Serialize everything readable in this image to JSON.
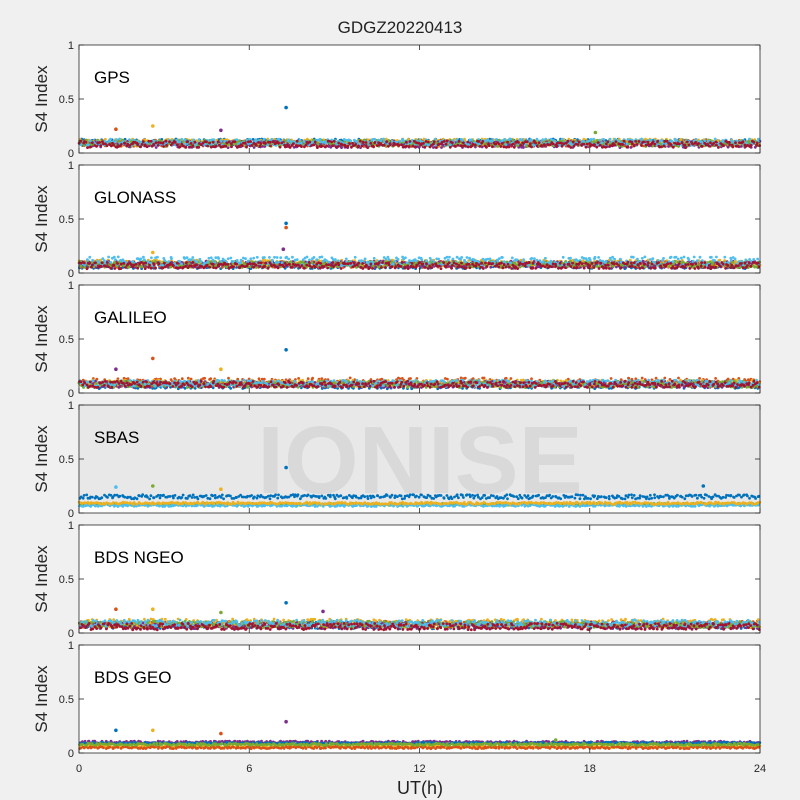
{
  "figure": {
    "title": "GDGZ20220413",
    "xlabel": "UT(h)",
    "watermark": "IONISE"
  },
  "chart_data": [
    {
      "type": "scatter",
      "title": "GPS",
      "ylabel": "S4 Index",
      "xlim": [
        0,
        24
      ],
      "ylim": [
        0,
        1
      ],
      "xticks": [
        0,
        6,
        12,
        18,
        24
      ],
      "yticks": [
        0,
        0.5,
        1
      ],
      "series": [
        {
          "color": "#0072BD",
          "baseline": 0.1,
          "spread": 0.03
        },
        {
          "color": "#D95319",
          "baseline": 0.09,
          "spread": 0.03
        },
        {
          "color": "#EDB120",
          "baseline": 0.1,
          "spread": 0.03
        },
        {
          "color": "#7E2F8E",
          "baseline": 0.08,
          "spread": 0.03
        },
        {
          "color": "#77AC30",
          "baseline": 0.09,
          "spread": 0.03
        },
        {
          "color": "#4DBEEE",
          "baseline": 0.1,
          "spread": 0.03
        },
        {
          "color": "#A2142F",
          "baseline": 0.08,
          "spread": 0.03
        }
      ],
      "outliers": [
        {
          "x": 7.3,
          "y": 0.42
        },
        {
          "x": 1.3,
          "y": 0.22
        },
        {
          "x": 2.6,
          "y": 0.25
        },
        {
          "x": 5.0,
          "y": 0.21
        },
        {
          "x": 18.2,
          "y": 0.19
        }
      ]
    },
    {
      "type": "scatter",
      "title": "GLONASS",
      "ylabel": "S4 Index",
      "xlim": [
        0,
        24
      ],
      "ylim": [
        0,
        1
      ],
      "xticks": [
        0,
        6,
        12,
        18,
        24
      ],
      "yticks": [
        0,
        0.5,
        1
      ],
      "series": [
        {
          "color": "#0072BD",
          "baseline": 0.07,
          "spread": 0.03
        },
        {
          "color": "#D95319",
          "baseline": 0.08,
          "spread": 0.03
        },
        {
          "color": "#EDB120",
          "baseline": 0.09,
          "spread": 0.03
        },
        {
          "color": "#7E2F8E",
          "baseline": 0.08,
          "spread": 0.03
        },
        {
          "color": "#77AC30",
          "baseline": 0.08,
          "spread": 0.03
        },
        {
          "color": "#4DBEEE",
          "baseline": 0.11,
          "spread": 0.04
        },
        {
          "color": "#A2142F",
          "baseline": 0.07,
          "spread": 0.03
        }
      ],
      "outliers": [
        {
          "x": 7.3,
          "y": 0.46
        },
        {
          "x": 7.3,
          "y": 0.42
        },
        {
          "x": 2.6,
          "y": 0.19
        },
        {
          "x": 7.2,
          "y": 0.22
        }
      ]
    },
    {
      "type": "scatter",
      "title": "GALILEO",
      "ylabel": "S4 Index",
      "xlim": [
        0,
        24
      ],
      "ylim": [
        0,
        1
      ],
      "xticks": [
        0,
        6,
        12,
        18,
        24
      ],
      "yticks": [
        0,
        0.5,
        1
      ],
      "series": [
        {
          "color": "#0072BD",
          "baseline": 0.07,
          "spread": 0.03
        },
        {
          "color": "#D95319",
          "baseline": 0.1,
          "spread": 0.04
        },
        {
          "color": "#EDB120",
          "baseline": 0.09,
          "spread": 0.03
        },
        {
          "color": "#7E2F8E",
          "baseline": 0.08,
          "spread": 0.03
        },
        {
          "color": "#77AC30",
          "baseline": 0.08,
          "spread": 0.03
        },
        {
          "color": "#4DBEEE",
          "baseline": 0.09,
          "spread": 0.03
        },
        {
          "color": "#A2142F",
          "baseline": 0.08,
          "spread": 0.03
        }
      ],
      "outliers": [
        {
          "x": 7.3,
          "y": 0.4
        },
        {
          "x": 2.6,
          "y": 0.32
        },
        {
          "x": 5.0,
          "y": 0.22
        },
        {
          "x": 1.3,
          "y": 0.22
        }
      ]
    },
    {
      "type": "scatter",
      "title": "SBAS",
      "ylabel": "S4 Index",
      "xlim": [
        0,
        24
      ],
      "ylim": [
        0,
        1
      ],
      "xticks": [
        0,
        6,
        12,
        18,
        24
      ],
      "yticks": [
        0,
        0.5,
        1
      ],
      "series": [
        {
          "color": "#0072BD",
          "baseline": 0.15,
          "spread": 0.02
        },
        {
          "color": "#77AC30",
          "baseline": 0.08,
          "spread": 0.01
        },
        {
          "color": "#4DBEEE",
          "baseline": 0.07,
          "spread": 0.01
        },
        {
          "color": "#EDB120",
          "baseline": 0.09,
          "spread": 0.01
        }
      ],
      "outliers": [
        {
          "x": 7.3,
          "y": 0.42
        },
        {
          "x": 2.6,
          "y": 0.25
        },
        {
          "x": 1.3,
          "y": 0.24
        },
        {
          "x": 5.0,
          "y": 0.22
        },
        {
          "x": 22.0,
          "y": 0.25
        }
      ]
    },
    {
      "type": "scatter",
      "title": "BDS NGEO",
      "ylabel": "S4 Index",
      "xlim": [
        0,
        24
      ],
      "ylim": [
        0,
        1
      ],
      "xticks": [
        0,
        6,
        12,
        18,
        24
      ],
      "yticks": [
        0,
        0.5,
        1
      ],
      "series": [
        {
          "color": "#0072BD",
          "baseline": 0.07,
          "spread": 0.03
        },
        {
          "color": "#D95319",
          "baseline": 0.08,
          "spread": 0.03
        },
        {
          "color": "#EDB120",
          "baseline": 0.09,
          "spread": 0.04
        },
        {
          "color": "#7E2F8E",
          "baseline": 0.07,
          "spread": 0.03
        },
        {
          "color": "#77AC30",
          "baseline": 0.08,
          "spread": 0.03
        },
        {
          "color": "#4DBEEE",
          "baseline": 0.09,
          "spread": 0.03
        },
        {
          "color": "#A2142F",
          "baseline": 0.06,
          "spread": 0.03
        }
      ],
      "outliers": [
        {
          "x": 7.3,
          "y": 0.28
        },
        {
          "x": 1.3,
          "y": 0.22
        },
        {
          "x": 2.6,
          "y": 0.22
        },
        {
          "x": 8.6,
          "y": 0.2
        },
        {
          "x": 5.0,
          "y": 0.19
        }
      ]
    },
    {
      "type": "scatter",
      "title": "BDS GEO",
      "ylabel": "S4 Index",
      "xlim": [
        0,
        24
      ],
      "ylim": [
        0,
        1
      ],
      "xticks": [
        0,
        6,
        12,
        18,
        24
      ],
      "yticks": [
        0,
        0.5,
        1
      ],
      "series": [
        {
          "color": "#7E2F8E",
          "baseline": 0.1,
          "spread": 0.01
        },
        {
          "color": "#0072BD",
          "baseline": 0.09,
          "spread": 0.01
        },
        {
          "color": "#EDB120",
          "baseline": 0.06,
          "spread": 0.01
        },
        {
          "color": "#D95319",
          "baseline": 0.05,
          "spread": 0.01
        },
        {
          "color": "#77AC30",
          "baseline": 0.08,
          "spread": 0.01
        }
      ],
      "outliers": [
        {
          "x": 7.3,
          "y": 0.29
        },
        {
          "x": 1.3,
          "y": 0.21
        },
        {
          "x": 2.6,
          "y": 0.21
        },
        {
          "x": 5.0,
          "y": 0.18
        },
        {
          "x": 16.8,
          "y": 0.12
        }
      ]
    }
  ]
}
